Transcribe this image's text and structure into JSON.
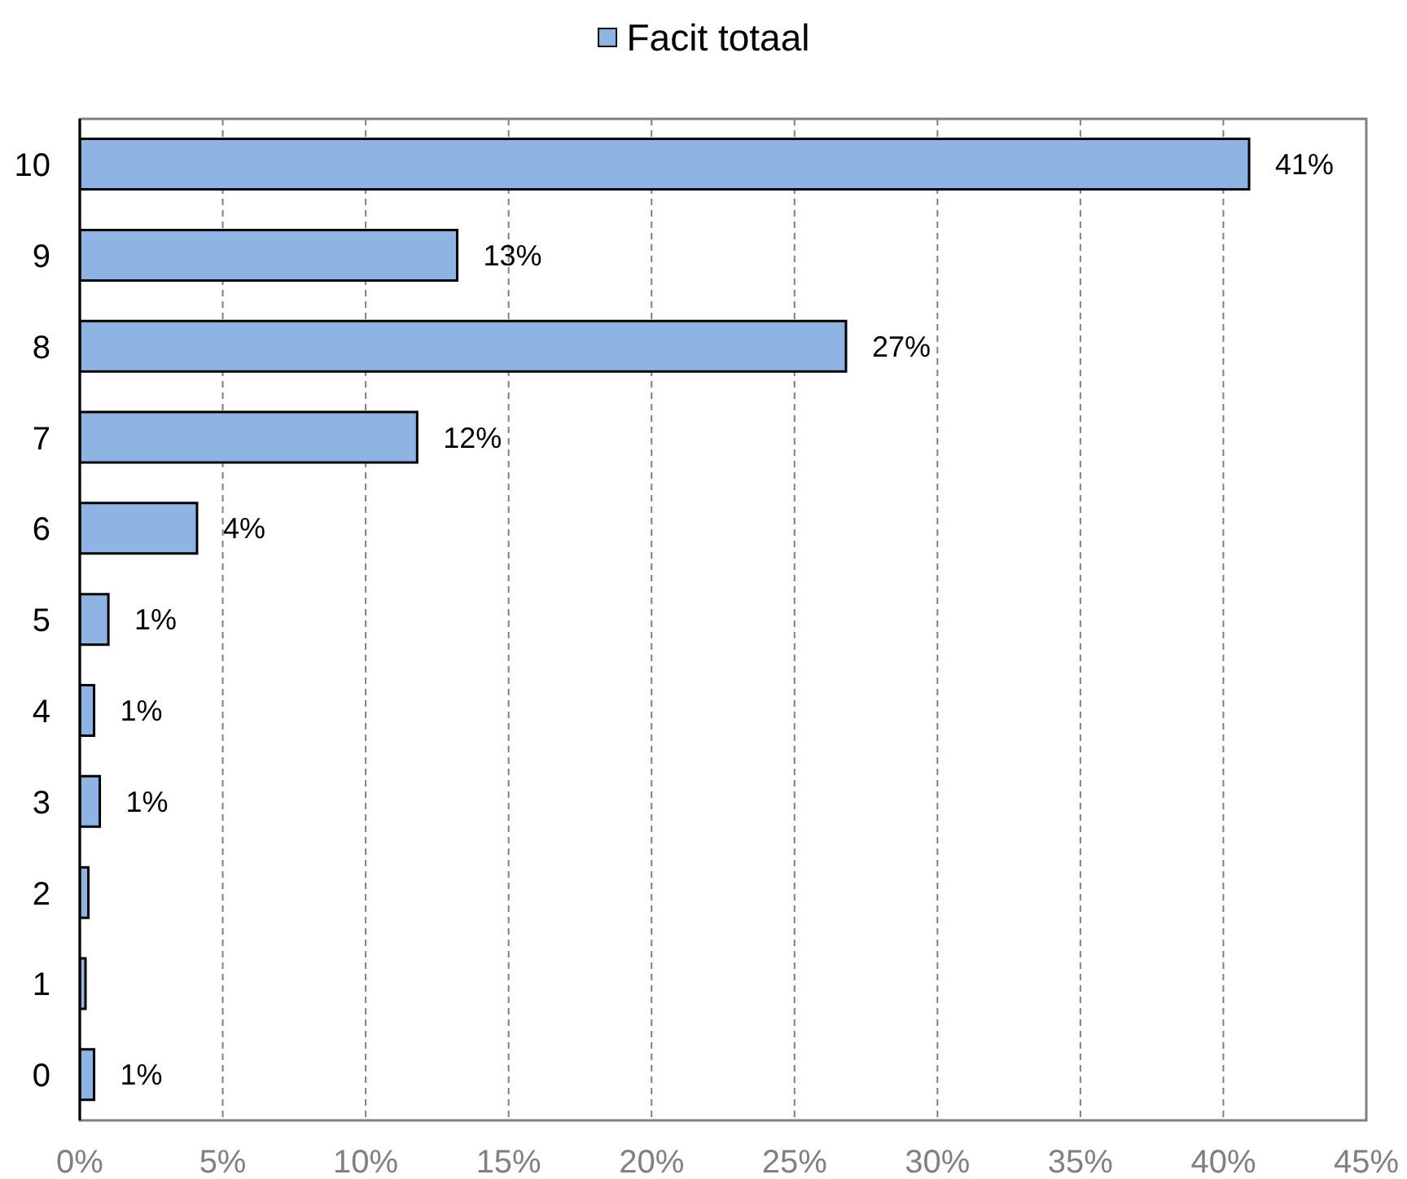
{
  "chart_data": {
    "type": "bar",
    "orientation": "horizontal",
    "legend": "top",
    "grid": "x",
    "categories": [
      "10",
      "9",
      "8",
      "7",
      "6",
      "5",
      "4",
      "3",
      "2",
      "1",
      "0"
    ],
    "series": [
      {
        "name": "Facit totaal",
        "color": "#8db4e2",
        "values": [
          40.9,
          13.2,
          26.8,
          11.8,
          4.1,
          1.0,
          0.5,
          0.7,
          0.3,
          0.2,
          0.5
        ],
        "value_labels": [
          "41%",
          "13%",
          "27%",
          "12%",
          "4%",
          "1%",
          "1%",
          "1%",
          null,
          null,
          "1%"
        ]
      }
    ],
    "xlim": [
      0,
      45
    ],
    "xticks": [
      {
        "value": 0,
        "label": "0%"
      },
      {
        "value": 5,
        "label": "5%"
      },
      {
        "value": 10,
        "label": "10%"
      },
      {
        "value": 15,
        "label": "15%"
      },
      {
        "value": 20,
        "label": "20%"
      },
      {
        "value": 25,
        "label": "25%"
      },
      {
        "value": 30,
        "label": "30%"
      },
      {
        "value": 35,
        "label": "35%"
      },
      {
        "value": 40,
        "label": "40%"
      },
      {
        "value": 45,
        "label": "45%"
      }
    ]
  }
}
